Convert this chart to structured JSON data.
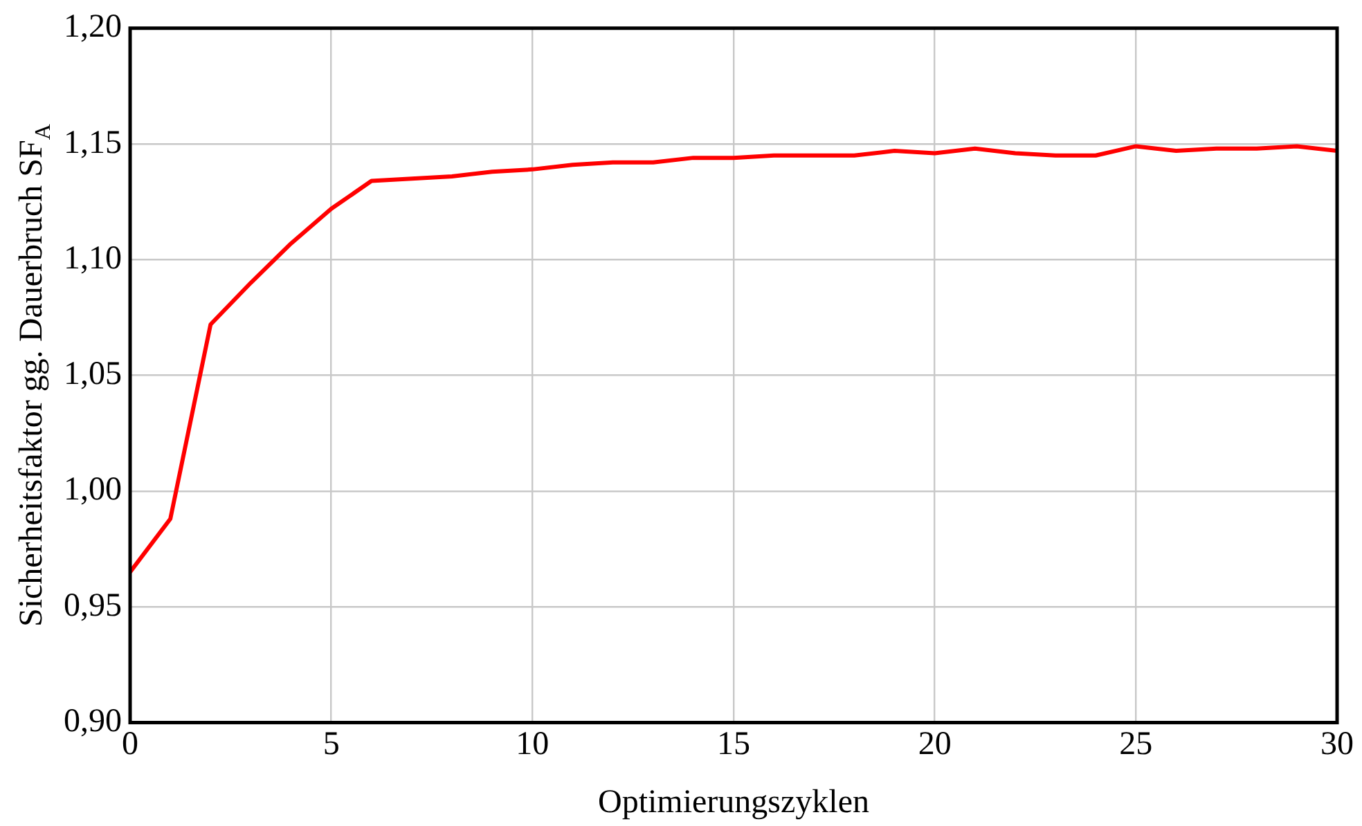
{
  "chart_data": {
    "type": "line",
    "xlabel": "Optimierungszyklen",
    "ylabel": "Sicherheitsfaktor gg. Dauerbruch SF$_{A}$",
    "x": [
      0,
      1,
      2,
      3,
      4,
      5,
      6,
      7,
      8,
      9,
      10,
      11,
      12,
      13,
      14,
      15,
      16,
      17,
      18,
      19,
      20,
      21,
      22,
      23,
      24,
      25,
      26,
      27,
      28,
      29,
      30
    ],
    "series": [
      {
        "color": "#ff0000",
        "values": [
          0.965,
          0.988,
          1.072,
          1.09,
          1.107,
          1.122,
          1.134,
          1.135,
          1.136,
          1.138,
          1.139,
          1.141,
          1.142,
          1.142,
          1.144,
          1.144,
          1.145,
          1.145,
          1.145,
          1.147,
          1.146,
          1.148,
          1.146,
          1.145,
          1.145,
          1.149,
          1.147,
          1.148,
          1.148,
          1.149,
          1.147
        ]
      }
    ],
    "xlim": [
      0,
      30
    ],
    "xticks": [
      0,
      5,
      10,
      15,
      20,
      25,
      30
    ],
    "ylim": [
      0.9,
      1.2
    ],
    "yticks": [
      {
        "value": 0.9,
        "label": "0,90"
      },
      {
        "value": 0.95,
        "label": "0,95"
      },
      {
        "value": 1.0,
        "label": "1,00"
      },
      {
        "value": 1.05,
        "label": "1,05"
      },
      {
        "value": 1.1,
        "label": "1,10"
      },
      {
        "value": 1.15,
        "label": "1,15"
      },
      {
        "value": 1.2,
        "label": "1,20"
      }
    ],
    "grid": true,
    "legend": false,
    "marker": "none",
    "line_style": "solid"
  }
}
